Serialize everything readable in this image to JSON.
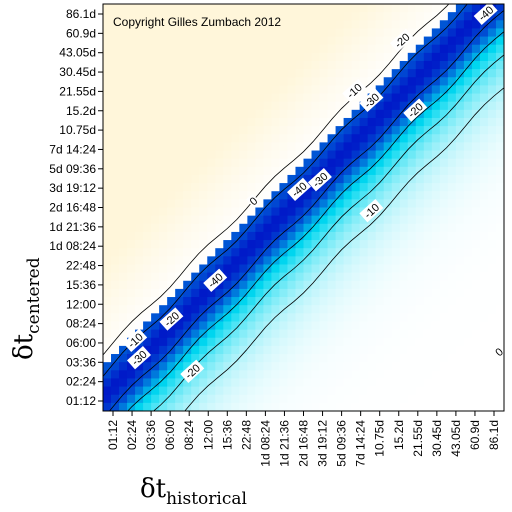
{
  "chart_data": {
    "type": "heatmap",
    "copyright": "Copyright Gilles Zumbach 2012",
    "xlabel": {
      "symbol": "δt",
      "subscript": "historical"
    },
    "ylabel": {
      "symbol": "δt",
      "subscript": "centered"
    },
    "x_ticks": [
      "01:12",
      "02:24",
      "03:36",
      "06:00",
      "08:24",
      "12:00",
      "15:36",
      "22:48",
      "1d 08:24",
      "1d 21:36",
      "2d 16:48",
      "3d 19:12",
      "5d 09:36",
      "7d 14:24",
      "10.75d",
      "15.2d",
      "21.55d",
      "30.45d",
      "43.05d",
      "60.9d",
      "86.1d"
    ],
    "y_ticks": [
      "01:12",
      "02:24",
      "03:36",
      "06:00",
      "08:24",
      "12:00",
      "15:36",
      "22:48",
      "1d 08:24",
      "1d 21:36",
      "2d 16:48",
      "3d 19:12",
      "5d 09:36",
      "7d 14:24",
      "10.75d",
      "15.2d",
      "21.55d",
      "30.45d",
      "43.05d",
      "60.9d",
      "86.1d"
    ],
    "contour_levels": [
      0,
      -10,
      -20,
      -30,
      -40
    ],
    "contour_labels": [
      {
        "text": "0",
        "x": 7.4,
        "y": 10.3
      },
      {
        "text": "0",
        "x": 20.3,
        "y": 2.5
      },
      {
        "text": "-10",
        "x": 12.7,
        "y": 16.0
      },
      {
        "text": "-10",
        "x": 13.6,
        "y": 9.8
      },
      {
        "text": "-10",
        "x": 1.2,
        "y": 3.1
      },
      {
        "text": "-20",
        "x": 15.2,
        "y": 18.6
      },
      {
        "text": "-20",
        "x": 15.9,
        "y": 15.0
      },
      {
        "text": "-20",
        "x": 3.1,
        "y": 4.2
      },
      {
        "text": "-20",
        "x": 4.2,
        "y": 1.5
      },
      {
        "text": "-30",
        "x": 13.6,
        "y": 15.5
      },
      {
        "text": "-30",
        "x": 10.9,
        "y": 11.4
      },
      {
        "text": "-30",
        "x": 1.4,
        "y": 2.2
      },
      {
        "text": "-40",
        "x": 19.6,
        "y": 20.0
      },
      {
        "text": "-40",
        "x": 9.8,
        "y": 10.9
      },
      {
        "text": "-40",
        "x": 5.4,
        "y": 6.2
      }
    ],
    "colors": {
      "positive": "#fff6da",
      "zero": "#ffffff",
      "mid": "#00d8f0",
      "strong": "#0018c8"
    }
  }
}
